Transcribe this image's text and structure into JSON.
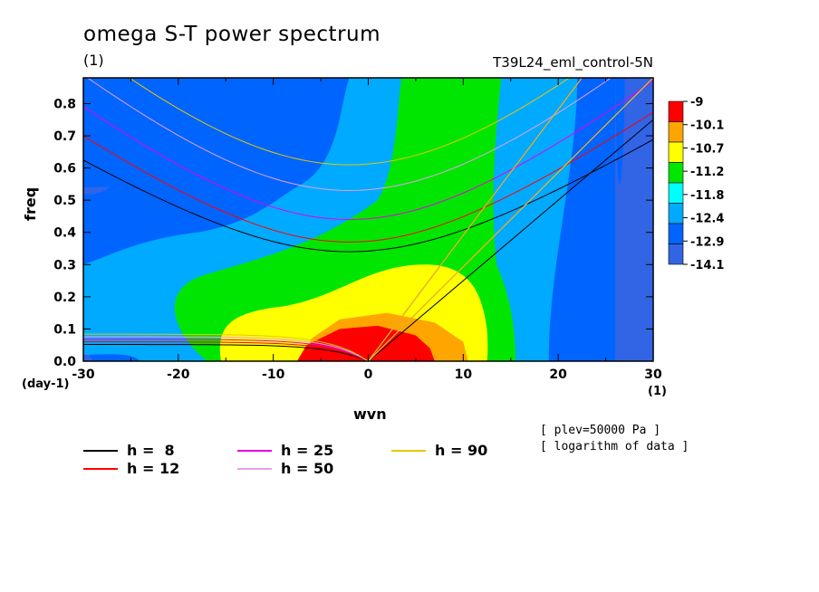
{
  "header": {
    "title": "omega S-T power spectrum",
    "unit": "(1)",
    "case_name": "T39L24_eml_control-5N"
  },
  "axes": {
    "xlabel": "wvn",
    "ylabel": "freq",
    "x_unit": "(day-1)",
    "x_unit_right": "(1)"
  },
  "notes": {
    "line1": "[ plev=50000 Pa ]",
    "line2": "[ logarithm of data ]"
  },
  "chart_data": {
    "type": "heatmap",
    "title": "omega S-T power spectrum",
    "xlabel": "wvn",
    "ylabel": "freq",
    "xlim": [
      -30,
      30
    ],
    "ylim": [
      0,
      0.88
    ],
    "xticks": [
      -30,
      -20,
      -10,
      0,
      10,
      20,
      30
    ],
    "yticks": [
      0.0,
      0.1,
      0.2,
      0.3,
      0.4,
      0.5,
      0.6,
      0.7,
      0.8
    ],
    "ytick_labels": [
      "0.0",
      "0.1",
      "0.2",
      "0.3",
      "0.4",
      "0.5",
      "0.6",
      "0.7",
      "0.8"
    ],
    "colorbar": {
      "levels": [
        "-9",
        "-10.1",
        "-10.7",
        "-11.2",
        "-11.8",
        "-12.4",
        "-12.9",
        "-14.1"
      ],
      "colors": [
        "#ff0000",
        "#ffa500",
        "#ffff00",
        "#00e600",
        "#00ffff",
        "#00aaff",
        "#0064ff",
        "#3264e6"
      ]
    },
    "contour_levels": [
      {
        "value": -10.7,
        "color": "#ffa500",
        "points": [
          [
            -6.8,
            0
          ],
          [
            -6,
            0.07
          ],
          [
            -3,
            0.13
          ],
          [
            2,
            0.15
          ],
          [
            7,
            0.12
          ],
          [
            10,
            0.06
          ],
          [
            10.5,
            0
          ]
        ]
      },
      {
        "value": -10.1,
        "color": "#ff0000",
        "points": [
          [
            -7.5,
            0
          ],
          [
            -6.5,
            0.05
          ],
          [
            -3,
            0.1
          ],
          [
            1,
            0.11
          ],
          [
            5,
            0.08
          ],
          [
            6.5,
            0.04
          ],
          [
            7,
            0
          ]
        ]
      }
    ],
    "dispersion_curves": {
      "equivalent_depths": [
        8,
        12,
        25,
        50,
        90
      ],
      "colors": [
        "#000000",
        "#ff0000",
        "#e600e6",
        "#e8a0e8",
        "#e6c800"
      ],
      "labels": [
        "h =  8",
        "h = 12",
        "h = 25",
        "h = 50",
        "h = 90"
      ],
      "rossby_min_freq": [
        0.34,
        0.37,
        0.44,
        0.53,
        0.61
      ]
    },
    "grid": false,
    "legend_position": "bottom"
  },
  "legend": [
    {
      "label": "h =  8",
      "color": "#000000"
    },
    {
      "label": "h = 12",
      "color": "#ff0000"
    },
    {
      "label": "h = 25",
      "color": "#e600e6"
    },
    {
      "label": "h = 50",
      "color": "#e8a0e8"
    },
    {
      "label": "h = 90",
      "color": "#e6c800"
    }
  ]
}
